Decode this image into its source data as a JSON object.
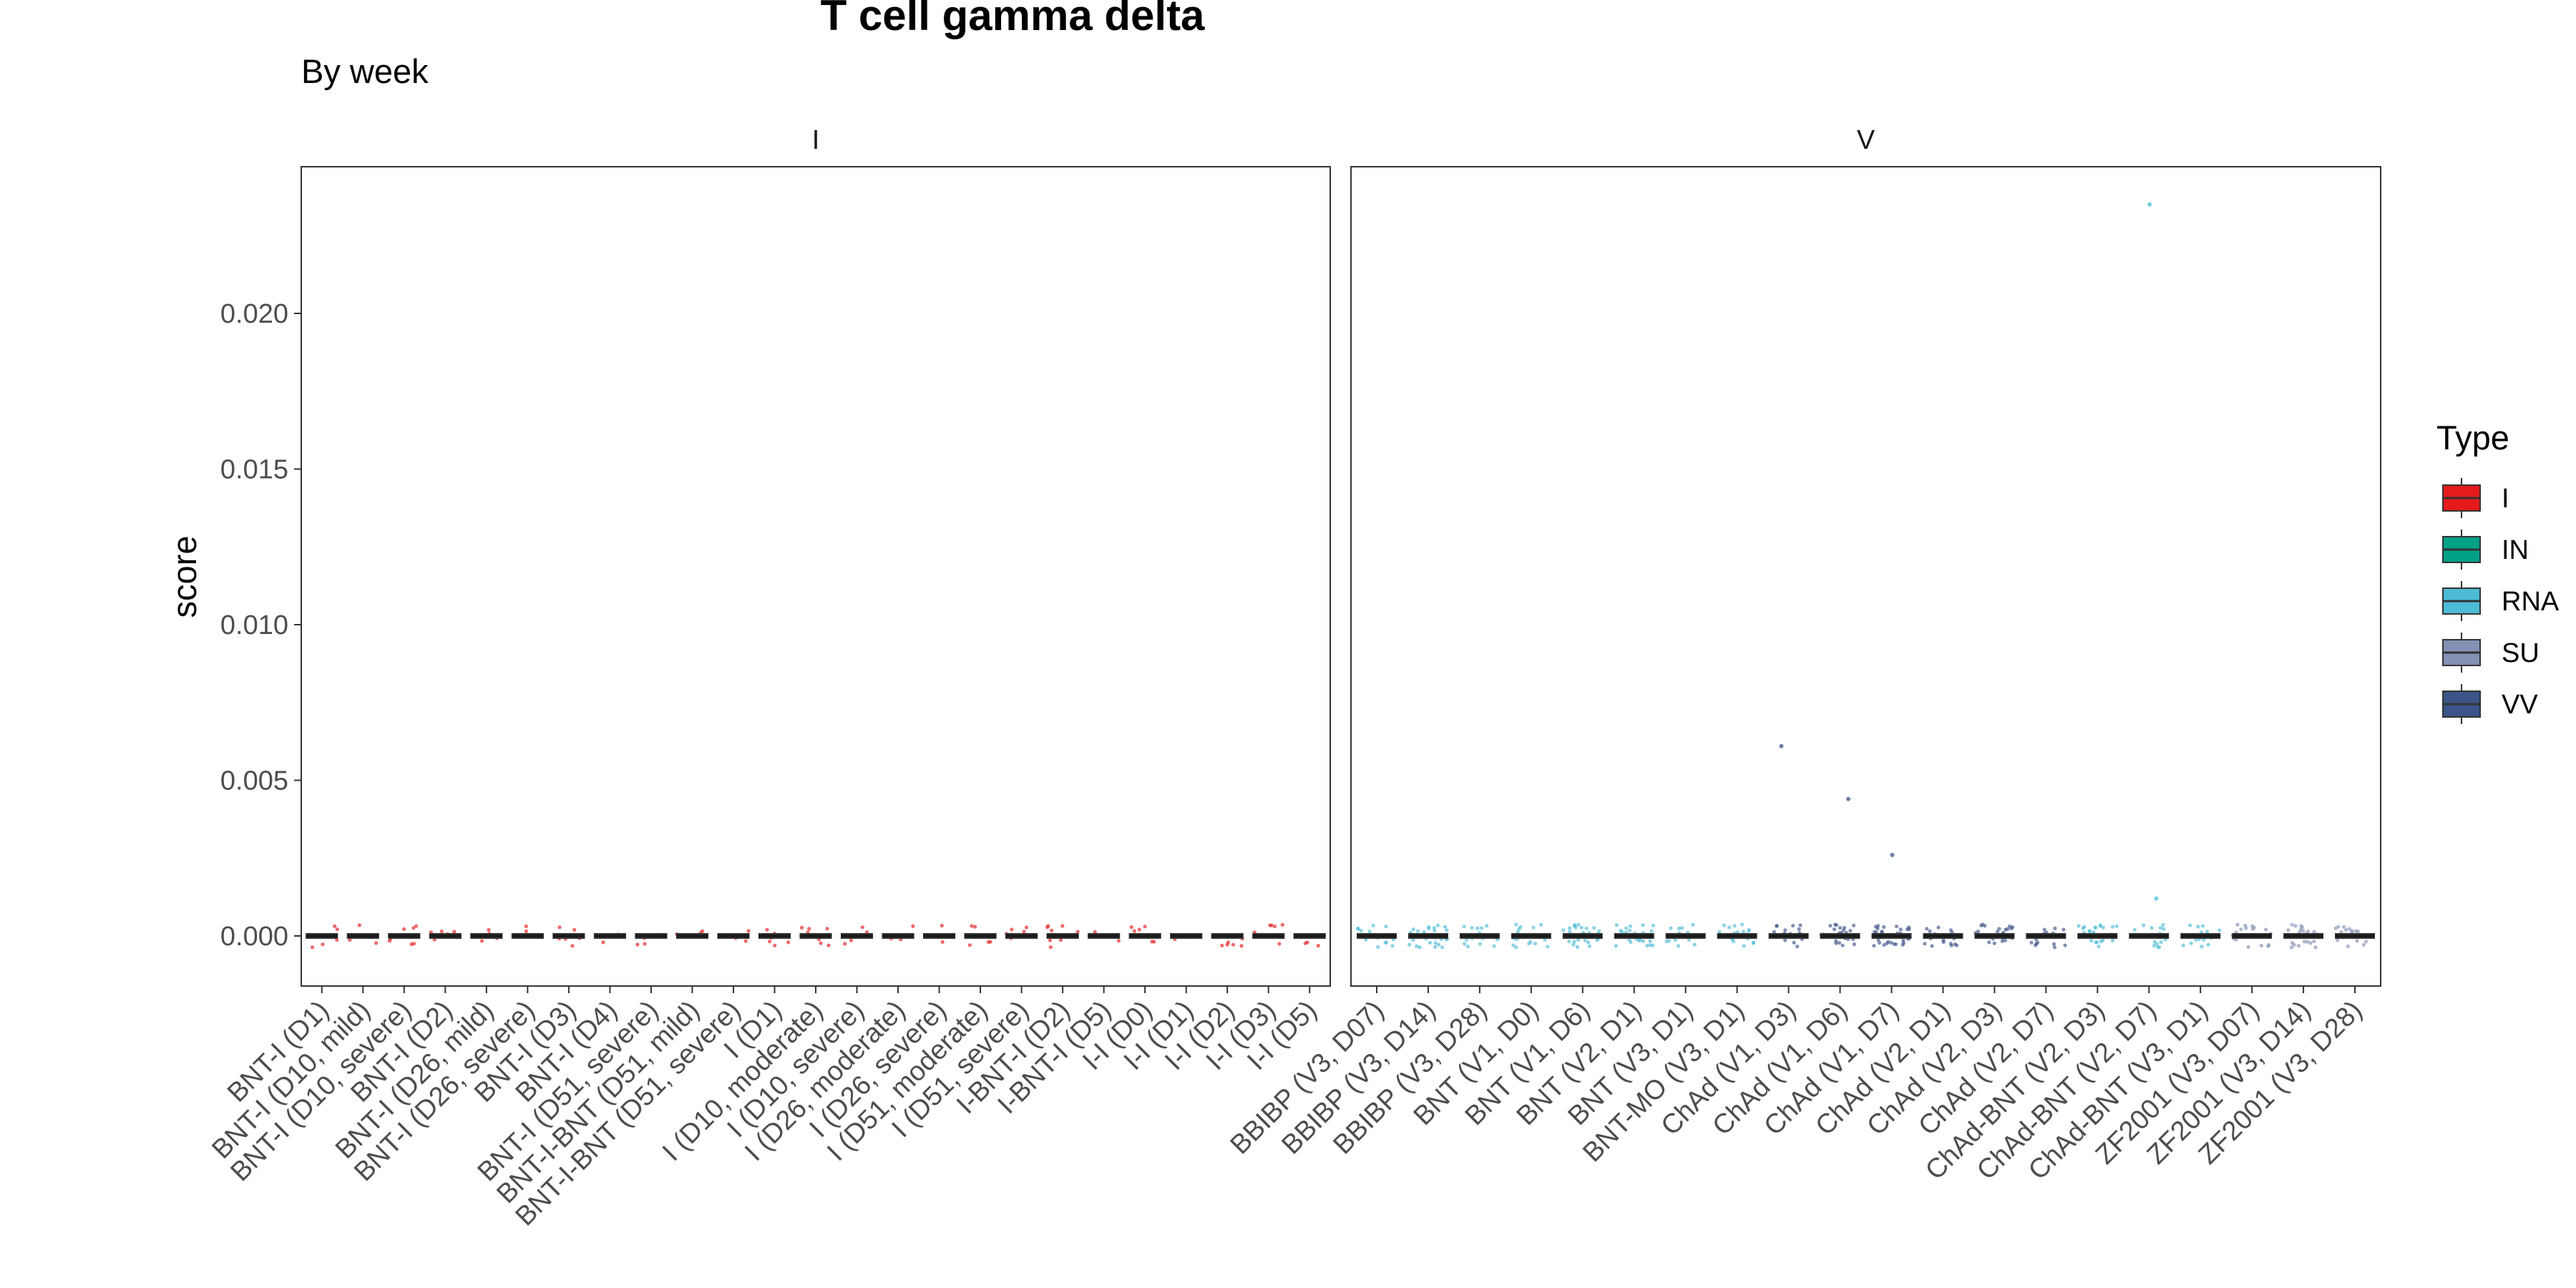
{
  "chart_data": {
    "type": "box",
    "title": "T cell gamma delta",
    "subtitle": "By week",
    "ylabel": "score",
    "xlabel": "",
    "ylim": [
      -0.0014,
      0.0245
    ],
    "yticks": [
      0.0,
      0.005,
      0.01,
      0.015,
      0.02
    ],
    "ytick_labels": [
      "0.000",
      "0.005",
      "0.010",
      "0.015",
      "0.020"
    ],
    "grid": false,
    "legend_position": "right",
    "legend": {
      "title": "Type",
      "items": [
        {
          "label": "I",
          "color": "#E41A1C"
        },
        {
          "label": "IN",
          "color": "#00A087"
        },
        {
          "label": "RNA",
          "color": "#4DBBD5"
        },
        {
          "label": "SU",
          "color": "#8491B4"
        },
        {
          "label": "VV",
          "color": "#3C5488"
        }
      ]
    },
    "panels": [
      {
        "strip": "I",
        "categories": [
          {
            "label": "BNT-I (D1)",
            "type": "I"
          },
          {
            "label": "BNT-I (D10, mild)",
            "type": "I"
          },
          {
            "label": "BNT-I (D10, severe)",
            "type": "I"
          },
          {
            "label": "BNT-I (D2)",
            "type": "I"
          },
          {
            "label": "BNT-I (D26, mild)",
            "type": "I"
          },
          {
            "label": "BNT-I (D26, severe)",
            "type": "I"
          },
          {
            "label": "BNT-I (D3)",
            "type": "I"
          },
          {
            "label": "BNT-I (D4)",
            "type": "I"
          },
          {
            "label": "BNT-I (D51, severe)",
            "type": "I"
          },
          {
            "label": "BNT-I-BNT (D51, mild)",
            "type": "I"
          },
          {
            "label": "BNT-I-BNT (D51, severe)",
            "type": "I"
          },
          {
            "label": "I (D1)",
            "type": "I"
          },
          {
            "label": "I (D10, moderate)",
            "type": "I"
          },
          {
            "label": "I (D10, severe)",
            "type": "I"
          },
          {
            "label": "I (D26, moderate)",
            "type": "I"
          },
          {
            "label": "I (D26, severe)",
            "type": "I"
          },
          {
            "label": "I (D51, moderate)",
            "type": "I"
          },
          {
            "label": "I (D51, severe)",
            "type": "I"
          },
          {
            "label": "I-BNT-I (D2)",
            "type": "I"
          },
          {
            "label": "I-BNT-I (D5)",
            "type": "I"
          },
          {
            "label": "I-I (D0)",
            "type": "I"
          },
          {
            "label": "I-I (D1)",
            "type": "I"
          },
          {
            "label": "I-I (D2)",
            "type": "I"
          },
          {
            "label": "I-I (D3)",
            "type": "I"
          },
          {
            "label": "I-I (D5)",
            "type": "I"
          }
        ]
      },
      {
        "strip": "V",
        "categories": [
          {
            "label": "BBIBP (V3, D07)",
            "type": "RNA"
          },
          {
            "label": "BBIBP (V3, D14)",
            "type": "RNA"
          },
          {
            "label": "BBIBP (V3, D28)",
            "type": "RNA"
          },
          {
            "label": "BNT (V1, D0)",
            "type": "RNA"
          },
          {
            "label": "BNT (V1, D6)",
            "type": "RNA"
          },
          {
            "label": "BNT (V2, D1)",
            "type": "RNA"
          },
          {
            "label": "BNT (V3, D1)",
            "type": "RNA"
          },
          {
            "label": "BNT-MO (V3, D1)",
            "type": "RNA"
          },
          {
            "label": "ChAd (V1, D3)",
            "type": "VV"
          },
          {
            "label": "ChAd (V1, D6)",
            "type": "VV"
          },
          {
            "label": "ChAd (V1, D7)",
            "type": "VV"
          },
          {
            "label": "ChAd (V2, D1)",
            "type": "VV"
          },
          {
            "label": "ChAd (V2, D3)",
            "type": "VV"
          },
          {
            "label": "ChAd (V2, D7)",
            "type": "VV"
          },
          {
            "label": "ChAd-BNT (V2, D3)",
            "type": "RNA"
          },
          {
            "label": "ChAd-BNT (V2, D7)",
            "type": "RNA"
          },
          {
            "label": "ChAd-BNT (V3, D1)",
            "type": "RNA"
          },
          {
            "label": "ZF2001 (V3, D07)",
            "type": "SU"
          },
          {
            "label": "ZF2001 (V3, D14)",
            "type": "SU"
          },
          {
            "label": "ZF2001 (V3, D28)",
            "type": "SU"
          }
        ],
        "outliers": [
          {
            "category": "ChAd (V1, D3)",
            "value": 0.0061
          },
          {
            "category": "ChAd (V1, D6)",
            "value": 0.0044
          },
          {
            "category": "ChAd (V1, D7)",
            "value": 0.0026
          },
          {
            "category": "ChAd-BNT (V2, D7)",
            "value": 0.0235
          },
          {
            "category": "ChAd-BNT (V2, D7)",
            "value": 0.0012
          }
        ]
      }
    ]
  }
}
